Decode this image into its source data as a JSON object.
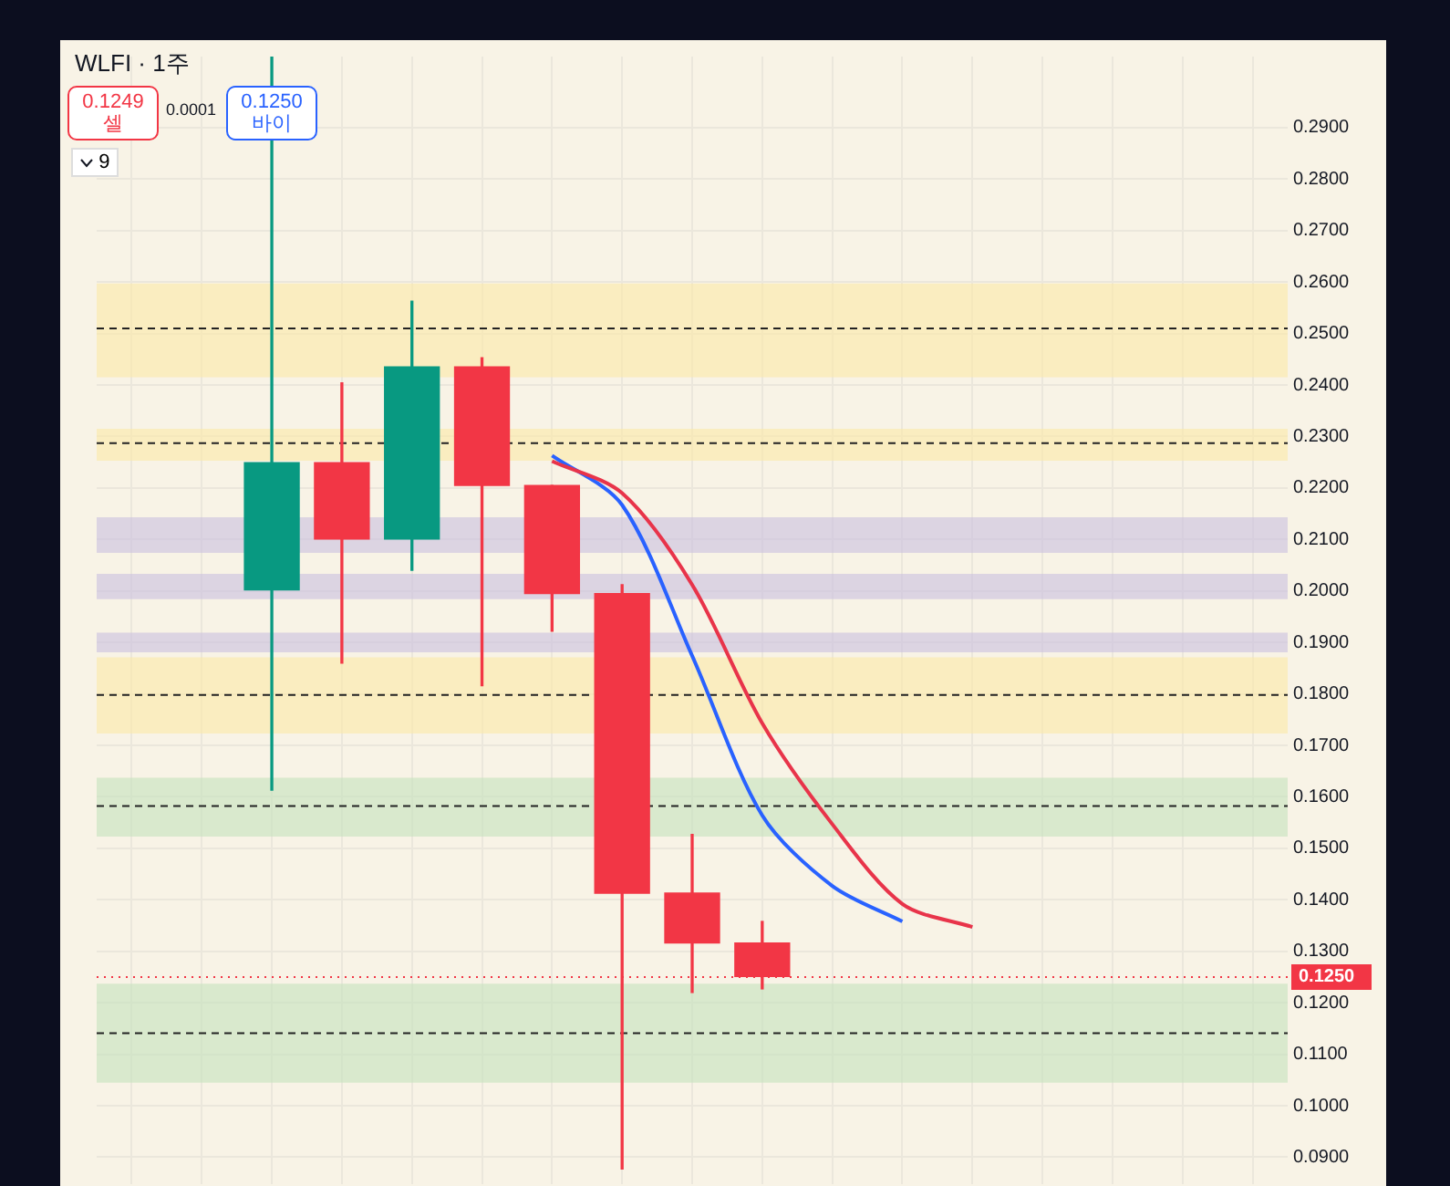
{
  "chart_data": {
    "type": "candlestick",
    "title": "WLFI · 1주",
    "annotations": [
      "0.1249",
      "셀",
      "0.0001",
      "0.1250",
      "바이",
      "9"
    ],
    "categories": [
      null,
      null,
      null,
      null,
      null,
      null,
      null,
      null,
      null,
      null,
      null,
      null,
      null,
      null,
      null,
      null,
      null
    ],
    "ohlc": [
      null,
      null,
      [
        0.2002,
        0.3038,
        0.1613,
        0.2249
      ],
      [
        0.2249,
        0.2404,
        0.186,
        0.2101
      ],
      [
        0.2101,
        0.2563,
        0.204,
        0.2435
      ],
      [
        0.2435,
        0.2453,
        0.1816,
        0.2205
      ],
      [
        0.2205,
        0.2205,
        0.1922,
        0.1995
      ],
      [
        0.1995,
        0.2012,
        0.0876,
        0.1413
      ],
      [
        0.1413,
        0.1527,
        0.122,
        0.1316
      ],
      [
        0.1316,
        0.1358,
        0.1227,
        0.1251
      ],
      null,
      null,
      null,
      null,
      null,
      null,
      null
    ],
    "colors": [
      null,
      null,
      "#089981",
      "#f23645",
      "#089981",
      "#f23645",
      "#f23645",
      "#f23645",
      "#f23645",
      "#f23645",
      null,
      null,
      null,
      null,
      null,
      null,
      null
    ],
    "series": [
      {
        "type": "line",
        "color": "#e8344a",
        "values": [
          null,
          null,
          null,
          null,
          null,
          null,
          0.2252,
          0.219,
          0.2012,
          0.1743,
          0.1547,
          0.1392,
          0.1347,
          null,
          null,
          null,
          null
        ]
      },
      {
        "type": "line",
        "color": "#2962ff",
        "values": [
          null,
          null,
          null,
          null,
          null,
          null,
          0.2263,
          0.2167,
          0.1874,
          0.1564,
          0.1427,
          0.1358,
          null,
          null,
          null,
          null,
          null
        ]
      }
    ],
    "ylim": [
      0.0876,
      0.3038
    ],
    "yticks": [
      {
        "value": 0.09,
        "label": "0.0900"
      },
      {
        "value": 0.1,
        "label": "0.1000"
      },
      {
        "value": 0.11,
        "label": "0.1100"
      },
      {
        "value": 0.12,
        "label": "0.1200"
      },
      {
        "value": 0.13,
        "label": "0.1300"
      },
      {
        "value": 0.14,
        "label": "0.1400"
      },
      {
        "value": 0.15,
        "label": "0.1500"
      },
      {
        "value": 0.16,
        "label": "0.1600"
      },
      {
        "value": 0.17,
        "label": "0.1700"
      },
      {
        "value": 0.18,
        "label": "0.1800"
      },
      {
        "value": 0.19,
        "label": "0.1900"
      },
      {
        "value": 0.2,
        "label": "0.2000"
      },
      {
        "value": 0.21,
        "label": "0.2100"
      },
      {
        "value": 0.22,
        "label": "0.2200"
      },
      {
        "value": 0.23,
        "label": "0.2300"
      },
      {
        "value": 0.24,
        "label": "0.2400"
      },
      {
        "value": 0.25,
        "label": "0.2500"
      },
      {
        "value": 0.26,
        "label": "0.2600"
      },
      {
        "value": 0.27,
        "label": "0.2700"
      },
      {
        "value": 0.28,
        "label": "0.2800"
      },
      {
        "value": 0.29,
        "label": "0.2900"
      }
    ],
    "bands": [
      {
        "axis": "y",
        "from": 0.2415,
        "to": 0.2597,
        "color": "#fbe9a6"
      },
      {
        "axis": "y",
        "from": 0.2253,
        "to": 0.2315,
        "color": "#fbe9a6"
      },
      {
        "axis": "y",
        "from": 0.2074,
        "to": 0.2143,
        "color": "#c9bfe0"
      },
      {
        "axis": "y",
        "from": 0.1984,
        "to": 0.2033,
        "color": "#c9bfe0"
      },
      {
        "axis": "y",
        "from": 0.1881,
        "to": 0.1919,
        "color": "#c9bfe0"
      },
      {
        "axis": "y",
        "from": 0.1723,
        "to": 0.1871,
        "color": "#fbe9a6"
      },
      {
        "axis": "y",
        "from": 0.1523,
        "to": 0.1637,
        "color": "#c4e3bd"
      },
      {
        "axis": "y",
        "from": 0.1045,
        "to": 0.1237,
        "color": "#c4e3bd"
      }
    ],
    "ref_lines": [
      {
        "axis": "y",
        "value": 0.251,
        "line_style": "dashed",
        "color": "#222222"
      },
      {
        "axis": "y",
        "value": 0.2287,
        "line_style": "dashed",
        "color": "#222222"
      },
      {
        "axis": "y",
        "value": 0.1798,
        "line_style": "dashed",
        "color": "#222222"
      },
      {
        "axis": "y",
        "value": 0.1582,
        "line_style": "dashed",
        "color": "#222222"
      },
      {
        "axis": "y",
        "value": 0.1141,
        "line_style": "dashed",
        "color": "#222222"
      },
      {
        "axis": "y",
        "value": 0.125,
        "label": "0.1250",
        "line_style": "dotted",
        "color": "#f23645"
      }
    ],
    "grid": true,
    "legend": false,
    "tick_labels": "y"
  }
}
